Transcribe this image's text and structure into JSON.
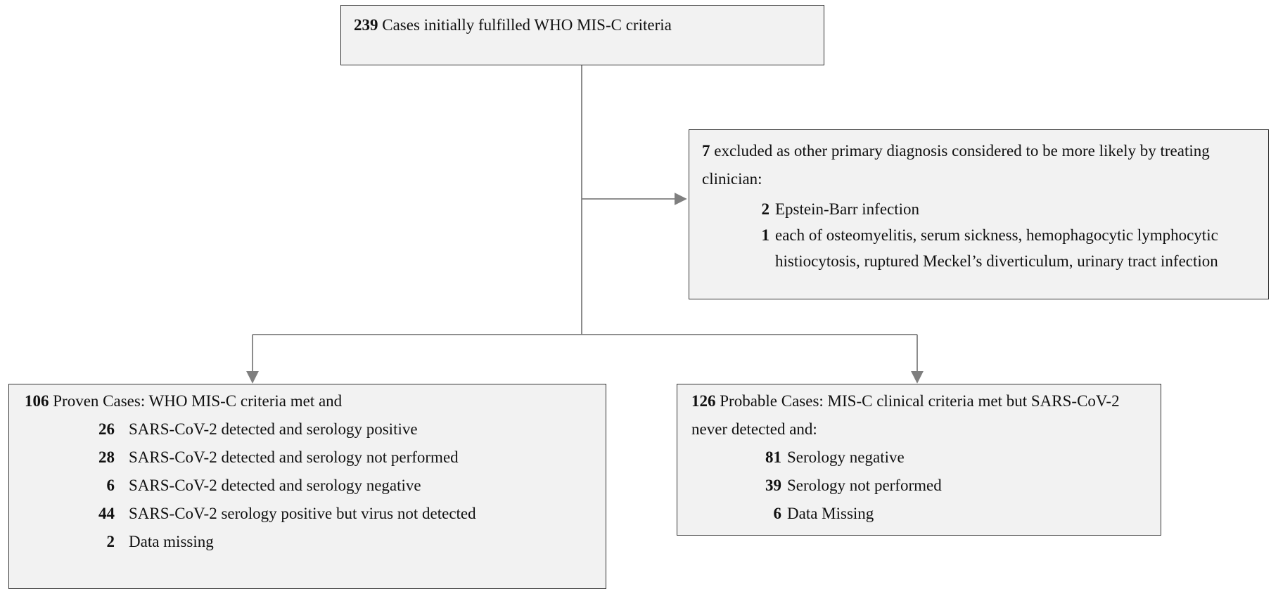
{
  "top": {
    "number": 239,
    "text": "Cases initially fulfilled WHO MIS-C criteria"
  },
  "excluded": {
    "number": 7,
    "text": "excluded as other primary diagnosis considered to be more likely by treating clinician:",
    "items": [
      {
        "number": 2,
        "text": "Epstein-Barr infection"
      },
      {
        "number": 1,
        "text": "each of osteomyelitis, serum sickness, hemophagocytic lymphocytic histiocytosis, ruptured Meckel’s diverticulum, urinary tract infection"
      }
    ]
  },
  "proven": {
    "number": 106,
    "text": "Proven Cases: WHO MIS-C criteria met and",
    "items": [
      {
        "number": 26,
        "text": "SARS-CoV-2 detected and serology positive"
      },
      {
        "number": 28,
        "text": "SARS-CoV-2 detected and serology not performed"
      },
      {
        "number": 6,
        "text": "SARS-CoV-2 detected and serology negative"
      },
      {
        "number": 44,
        "text": "SARS-CoV-2 serology positive but virus not detected"
      },
      {
        "number": 2,
        "text": "Data missing"
      }
    ]
  },
  "probable": {
    "number": 126,
    "text": "Probable Cases: MIS-C clinical criteria met but SARS-CoV-2 never detected and:",
    "items": [
      {
        "number": 81,
        "text": "Serology negative"
      },
      {
        "number": 39,
        "text": "Serology not performed"
      },
      {
        "number": 6,
        "text": "Data Missing"
      }
    ]
  }
}
